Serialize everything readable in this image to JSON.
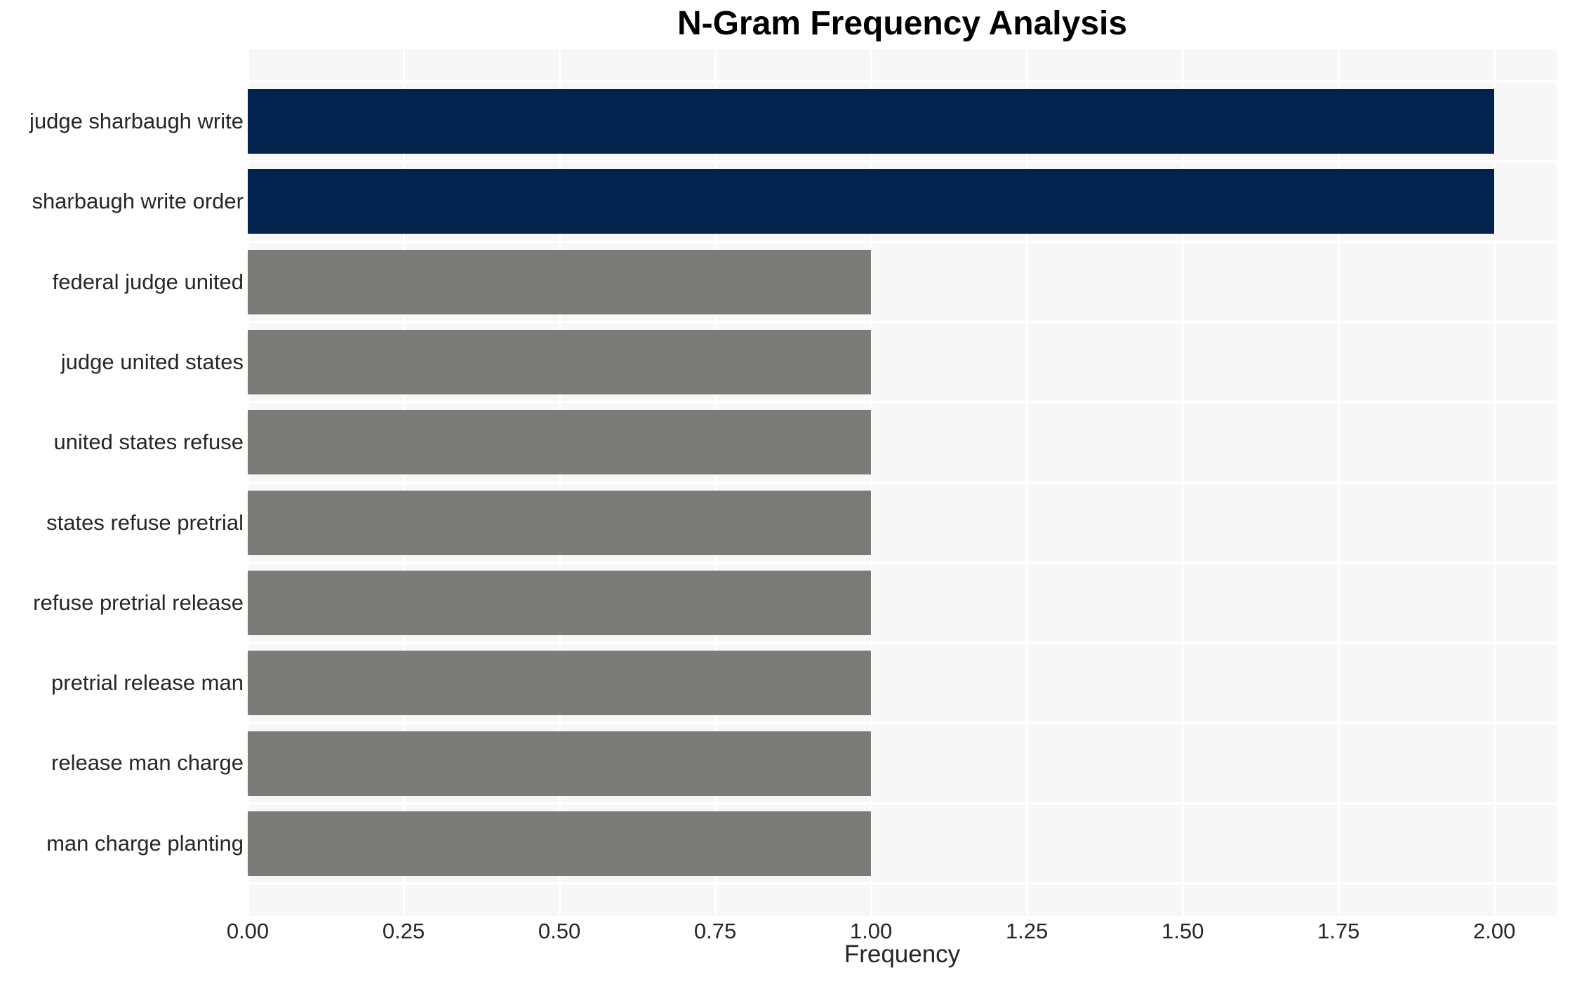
{
  "chart_data": {
    "type": "bar",
    "orientation": "horizontal",
    "title": "N-Gram Frequency Analysis",
    "xlabel": "Frequency",
    "ylabel": "",
    "categories": [
      "judge sharbaugh write",
      "sharbaugh write order",
      "federal judge united",
      "judge united states",
      "united states refuse",
      "states refuse pretrial",
      "refuse pretrial release",
      "pretrial release man",
      "release man charge",
      "man charge planting"
    ],
    "values": [
      2,
      2,
      1,
      1,
      1,
      1,
      1,
      1,
      1,
      1
    ],
    "bar_colors": [
      "#02234d",
      "#02234d",
      "#7b7b78",
      "#7b7b78",
      "#7b7b78",
      "#7b7b78",
      "#7b7b78",
      "#7b7b78",
      "#7b7b78",
      "#7b7b78"
    ],
    "highlight_color": "#02234d",
    "base_color": "#7b7b78",
    "xlim": [
      0,
      2.1
    ],
    "xticks": [
      "0.00",
      "0.25",
      "0.50",
      "0.75",
      "1.00",
      "1.25",
      "1.50",
      "1.75",
      "2.00"
    ],
    "xtick_values": [
      0,
      0.25,
      0.5,
      0.75,
      1.0,
      1.25,
      1.5,
      1.75,
      2.0
    ],
    "grid": true,
    "grid_color": "#ffffff",
    "plot_background": "#f7f7f7",
    "legend": false
  }
}
